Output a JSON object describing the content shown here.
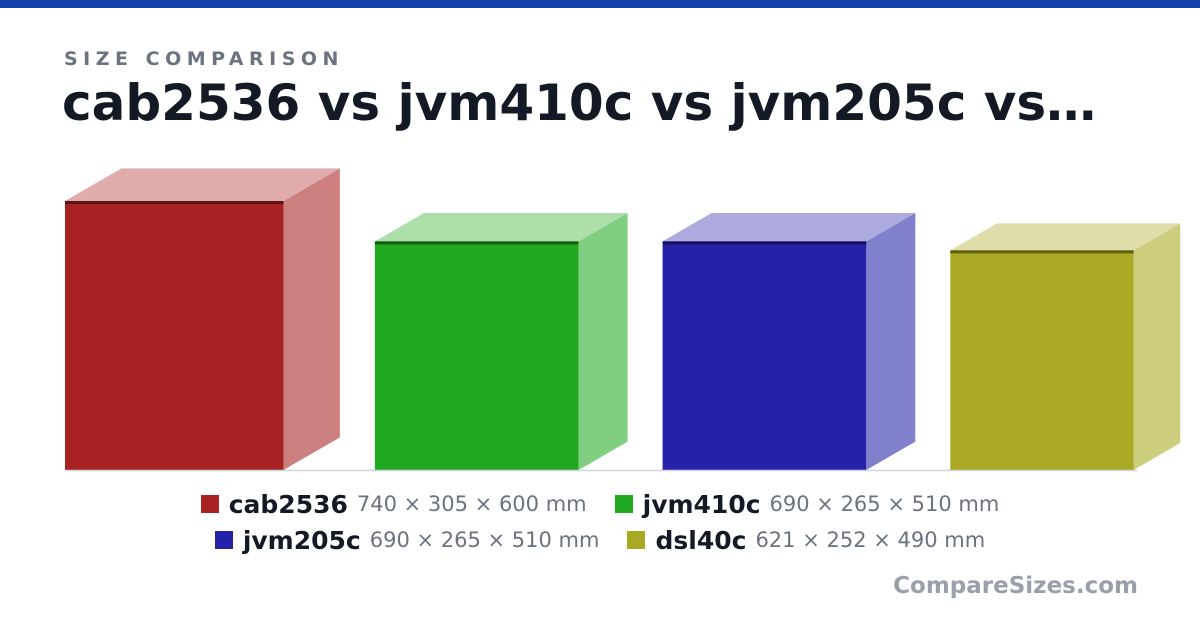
{
  "header": {
    "eyebrow": "SIZE COMPARISON",
    "title": "cab2536 vs jvm410c vs jvm205c vs…"
  },
  "brand": "CompareSizes.com",
  "colors": {
    "topbar": "#1140ab"
  },
  "chart_data": {
    "type": "bar",
    "unit": "mm",
    "items": [
      {
        "name": "cab2536",
        "width": 740,
        "depth": 305,
        "height": 600,
        "dims": "740 × 305 × 600 mm",
        "front": "#a82224",
        "top": "#dfabab",
        "side": "#cd7e7e",
        "edge": "#5e1214"
      },
      {
        "name": "jvm410c",
        "width": 690,
        "depth": 265,
        "height": 510,
        "dims": "690 × 265 × 510 mm",
        "front": "#22a922",
        "top": "#addfab",
        "side": "#80ce80",
        "edge": "#135e13"
      },
      {
        "name": "jvm205c",
        "width": 690,
        "depth": 265,
        "height": 510,
        "dims": "690 × 265 × 510 mm",
        "front": "#2522a9",
        "top": "#acaade",
        "side": "#8180cd",
        "edge": "#15135e"
      },
      {
        "name": "dsl40c",
        "width": 621,
        "depth": 252,
        "height": 490,
        "dims": "621 × 252 × 490 mm",
        "front": "#aaa923",
        "top": "#dfdeab",
        "side": "#cdcd7e",
        "edge": "#5e5d13"
      }
    ]
  }
}
